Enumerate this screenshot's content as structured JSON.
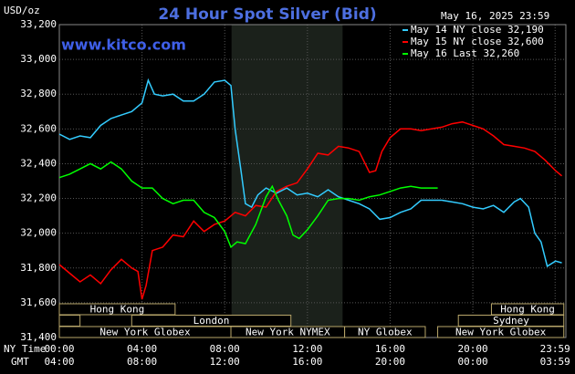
{
  "chart_data": {
    "type": "line",
    "title": "24 Hour Spot Silver (Bid)",
    "unit_label": "USD/oz",
    "date_label": "May 16, 2025 23:59",
    "site": "www.kitco.com",
    "x_row_labels": [
      "NY Time",
      "GMT"
    ],
    "xlim": [
      0,
      24.5
    ],
    "xticks": [
      {
        "value": 0,
        "label": "00:00"
      },
      {
        "value": 4,
        "label": "04:00"
      },
      {
        "value": 8,
        "label": "08:00"
      },
      {
        "value": 12,
        "label": "12:00"
      },
      {
        "value": 16,
        "label": "16:00"
      },
      {
        "value": 20,
        "label": "20:00"
      },
      {
        "value": 23.98,
        "label": "23:59"
      }
    ],
    "gmt_ticks": [
      {
        "value": 0,
        "label": "04:00"
      },
      {
        "value": 4,
        "label": "08:00"
      },
      {
        "value": 8,
        "label": "12:00"
      },
      {
        "value": 12,
        "label": "16:00"
      },
      {
        "value": 16,
        "label": "20:00"
      },
      {
        "value": 20,
        "label": "00:00"
      },
      {
        "value": 23.98,
        "label": "03:59"
      }
    ],
    "ylim": [
      31400,
      33200
    ],
    "yticks": [
      {
        "value": 31400,
        "label": "31,400"
      },
      {
        "value": 31600,
        "label": "31,600"
      },
      {
        "value": 31800,
        "label": "31,800"
      },
      {
        "value": 32000,
        "label": "32,000"
      },
      {
        "value": 32200,
        "label": "32,200"
      },
      {
        "value": 32400,
        "label": "32,400"
      },
      {
        "value": 32600,
        "label": "32,600"
      },
      {
        "value": 32800,
        "label": "32,800"
      },
      {
        "value": 33000,
        "label": "33,000"
      },
      {
        "value": 33200,
        "label": "33,200"
      }
    ],
    "grid": true,
    "shade": [
      8.33,
      13.7
    ],
    "session_rows": [
      [
        {
          "label": "Hong Kong",
          "start": 0,
          "end": 5.6
        },
        {
          "label": "Hong Kong",
          "start": 20.9,
          "end": 24.4
        }
      ],
      [
        {
          "label": null,
          "start": 0,
          "end": 1.0
        },
        {
          "label": "London",
          "start": 3.5,
          "end": 11.2
        },
        {
          "label": "Sydney",
          "start": 19.3,
          "end": 24.4
        }
      ],
      [
        {
          "label": "New York Globex",
          "start": 0,
          "end": 8.3
        },
        {
          "label": "New York NYMEX",
          "start": 8.3,
          "end": 13.8
        },
        {
          "label": "NY Globex",
          "start": 13.8,
          "end": 17.7
        },
        {
          "label": "New York Globex",
          "start": 18.3,
          "end": 24.4
        }
      ]
    ],
    "series": [
      {
        "name": "May 14 NY close 32,190",
        "color": "#33ccff",
        "x": [
          0,
          0.5,
          1,
          1.5,
          2,
          2.5,
          3,
          3.5,
          4,
          4.3,
          4.6,
          5,
          5.5,
          6,
          6.5,
          7,
          7.5,
          8,
          8.3,
          8.5,
          8.8,
          9,
          9.3,
          9.6,
          10,
          10.5,
          11,
          11.5,
          12,
          12.5,
          13,
          13.5,
          14,
          14.5,
          15,
          15.5,
          16,
          16.5,
          17,
          17.5,
          18,
          18.5,
          19,
          19.5,
          20,
          20.5,
          21,
          21.5,
          22,
          22.3,
          22.7,
          23,
          23.3,
          23.6,
          24,
          24.3
        ],
        "values": [
          32570,
          32540,
          32560,
          32550,
          32620,
          32660,
          32680,
          32700,
          32750,
          32880,
          32800,
          32790,
          32800,
          32760,
          32760,
          32800,
          32870,
          32880,
          32850,
          32600,
          32350,
          32170,
          32150,
          32220,
          32260,
          32230,
          32260,
          32220,
          32230,
          32210,
          32250,
          32210,
          32190,
          32170,
          32140,
          32080,
          32090,
          32120,
          32140,
          32190,
          32190,
          32190,
          32180,
          32170,
          32150,
          32140,
          32160,
          32120,
          32180,
          32200,
          32150,
          32000,
          31950,
          31810,
          31840,
          31830
        ]
      },
      {
        "name": "May 15 NY close 32,600",
        "color": "#ff0000",
        "x": [
          0,
          0.5,
          1,
          1.5,
          2,
          2.5,
          3,
          3.5,
          3.8,
          4,
          4.2,
          4.5,
          5,
          5.5,
          6,
          6.5,
          7,
          7.5,
          8,
          8.5,
          9,
          9.5,
          10,
          10.5,
          11,
          11.5,
          12,
          12.5,
          13,
          13.5,
          14,
          14.5,
          15,
          15.3,
          15.6,
          16,
          16.5,
          17,
          17.5,
          18,
          18.5,
          19,
          19.5,
          20,
          20.5,
          21,
          21.5,
          22,
          22.5,
          23,
          23.5,
          24,
          24.3
        ],
        "values": [
          31820,
          31770,
          31720,
          31760,
          31710,
          31790,
          31850,
          31800,
          31780,
          31620,
          31700,
          31900,
          31920,
          31990,
          31980,
          32070,
          32010,
          32050,
          32070,
          32120,
          32100,
          32160,
          32150,
          32240,
          32270,
          32290,
          32370,
          32460,
          32450,
          32500,
          32490,
          32470,
          32350,
          32360,
          32470,
          32550,
          32600,
          32600,
          32590,
          32600,
          32610,
          32630,
          32640,
          32620,
          32600,
          32560,
          32510,
          32500,
          32490,
          32470,
          32420,
          32360,
          32330
        ]
      },
      {
        "name": "May 16 Last 32,260",
        "color": "#00ff00",
        "x": [
          0,
          0.5,
          1,
          1.5,
          2,
          2.5,
          3,
          3.5,
          4,
          4.5,
          5,
          5.5,
          6,
          6.5,
          7,
          7.5,
          8,
          8.3,
          8.6,
          9,
          9.5,
          10,
          10.3,
          10.6,
          11,
          11.3,
          11.6,
          12,
          12.5,
          13,
          13.5,
          14,
          14.5,
          15,
          15.5,
          16,
          16.5,
          17,
          17.5,
          18.3
        ],
        "values": [
          32320,
          32340,
          32370,
          32400,
          32370,
          32410,
          32370,
          32300,
          32260,
          32260,
          32200,
          32170,
          32190,
          32190,
          32120,
          32090,
          32010,
          31920,
          31950,
          31940,
          32050,
          32210,
          32270,
          32190,
          32100,
          31990,
          31970,
          32020,
          32100,
          32190,
          32200,
          32200,
          32190,
          32210,
          32220,
          32240,
          32260,
          32270,
          32260,
          32260
        ]
      }
    ]
  }
}
